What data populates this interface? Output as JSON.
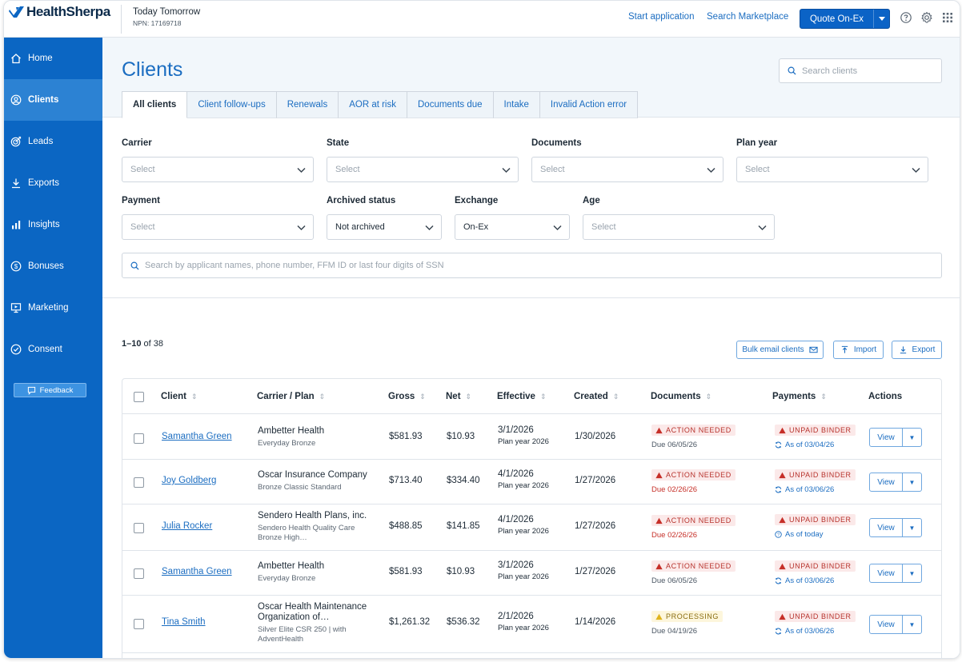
{
  "brand": {
    "name": "HealthSherpa",
    "primary_color": "#0b66c3",
    "link_color": "#1b6dc1"
  },
  "agent": {
    "name": "Today Tomorrow",
    "npn": "NPN: 17169718"
  },
  "top_nav": {
    "start_application": "Start application",
    "search_marketplace": "Search Marketplace",
    "quote_button": "Quote On-Ex"
  },
  "sidebar": {
    "items": [
      {
        "label": "Home",
        "icon": "home-icon"
      },
      {
        "label": "Clients",
        "icon": "user-circle-icon"
      },
      {
        "label": "Leads",
        "icon": "target-icon"
      },
      {
        "label": "Exports",
        "icon": "download-icon"
      },
      {
        "label": "Insights",
        "icon": "bar-chart-icon"
      },
      {
        "label": "Bonuses",
        "icon": "dollar-circle-icon"
      },
      {
        "label": "Marketing",
        "icon": "presentation-icon"
      },
      {
        "label": "Consent",
        "icon": "check-circle-icon"
      }
    ],
    "feedback": "Feedback"
  },
  "page": {
    "title": "Clients",
    "search_placeholder": "Search clients"
  },
  "tabs": [
    "All clients",
    "Client follow-ups",
    "Renewals",
    "AOR at risk",
    "Documents due",
    "Intake",
    "Invalid Action error"
  ],
  "filters": {
    "carrier": {
      "label": "Carrier",
      "value": "Select"
    },
    "state": {
      "label": "State",
      "value": "Select"
    },
    "documents": {
      "label": "Documents",
      "value": "Select"
    },
    "plan_year": {
      "label": "Plan year",
      "value": "Select"
    },
    "payment": {
      "label": "Payment",
      "value": "Select"
    },
    "archived": {
      "label": "Archived status",
      "value": "Not archived"
    },
    "exchange": {
      "label": "Exchange",
      "value": "On-Ex"
    },
    "age": {
      "label": "Age",
      "value": "Select"
    },
    "search_placeholder": "Search by applicant names, phone number, FFM ID or last four digits of SSN"
  },
  "results": {
    "range": "1–10",
    "of_text": "of 38",
    "bulk_email": "Bulk email clients",
    "import": "Import",
    "export": "Export"
  },
  "table": {
    "columns": {
      "client": "Client",
      "carrier": "Carrier / Plan",
      "gross": "Gross",
      "net": "Net",
      "effective": "Effective",
      "created": "Created",
      "documents": "Documents",
      "payments": "Payments",
      "actions": "Actions"
    },
    "view_label": "View",
    "rows": [
      {
        "client": "Samantha Green",
        "carrier": "Ambetter Health",
        "plan": "Everyday Bronze",
        "gross": "$581.93",
        "net": "$10.93",
        "effective": "3/1/2026",
        "plan_year": "Plan year 2026",
        "created": "1/30/2026",
        "doc_badge": "ACTION NEEDED",
        "doc_due": "Due 06/05/26",
        "pay_badge": "UNPAID BINDER",
        "pay_asof": "As of 03/04/26"
      },
      {
        "client": "Joy Goldberg",
        "carrier": "Oscar Insurance Company",
        "plan": "Bronze Classic Standard",
        "gross": "$713.40",
        "net": "$334.40",
        "effective": "4/1/2026",
        "plan_year": "Plan year 2026",
        "created": "1/27/2026",
        "doc_badge": "ACTION NEEDED",
        "doc_due": "Due 02/26/26",
        "pay_badge": "UNPAID BINDER",
        "pay_asof": "As of 03/06/26"
      },
      {
        "client": "Julia Rocker",
        "carrier": "Sendero Health Plans, inc.",
        "plan": "Sendero Health Quality Care Bronze High…",
        "gross": "$488.85",
        "net": "$141.85",
        "effective": "4/1/2026",
        "plan_year": "Plan year 2026",
        "created": "1/27/2026",
        "doc_badge": "ACTION NEEDED",
        "doc_due": "Due 02/26/26",
        "pay_badge": "UNPAID BINDER",
        "pay_asof": "As of today"
      },
      {
        "client": "Samantha Green",
        "carrier": "Ambetter Health",
        "plan": "Everyday Bronze",
        "gross": "$581.93",
        "net": "$10.93",
        "effective": "3/1/2026",
        "plan_year": "Plan year 2026",
        "created": "1/27/2026",
        "doc_badge": "ACTION NEEDED",
        "doc_due": "Due 06/05/26",
        "pay_badge": "UNPAID BINDER",
        "pay_asof": "As of 03/06/26"
      },
      {
        "client": "Tina Smith",
        "carrier": "Oscar Health Maintenance Organization of…",
        "plan": "Silver Elite CSR 250 | with AdventHealth",
        "gross": "$1,261.32",
        "net": "$536.32",
        "effective": "2/1/2026",
        "plan_year": "Plan year 2026",
        "created": "1/14/2026",
        "doc_badge": "PROCESSING",
        "doc_due": "Due 04/19/26",
        "pay_badge": "UNPAID BINDER",
        "pay_asof": "As of 03/06/26"
      }
    ]
  }
}
